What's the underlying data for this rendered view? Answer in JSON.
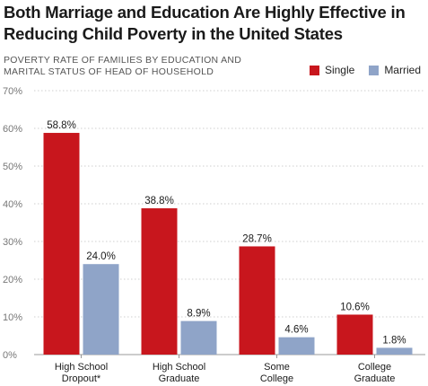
{
  "title_lines": [
    "Both Marriage and Education Are Highly Effective in",
    "Reducing Child Poverty in the United States"
  ],
  "subtitle_lines": [
    "POVERTY RATE OF FAMILIES BY EDUCATION AND",
    "MARITAL STATUS OF HEAD OF HOUSEHOLD"
  ],
  "legend": [
    {
      "label": "Single",
      "color": "#c8161d"
    },
    {
      "label": "Married",
      "color": "#8fa4c8"
    }
  ],
  "chart_data": {
    "type": "bar",
    "categories": [
      [
        "High School",
        "Dropout*"
      ],
      [
        "High School",
        "Graduate"
      ],
      [
        "Some",
        "College"
      ],
      [
        "College",
        "Graduate"
      ]
    ],
    "series": [
      {
        "name": "Single",
        "color": "#c8161d",
        "values": [
          58.8,
          38.8,
          28.7,
          10.6
        ],
        "labels": [
          "58.8%",
          "38.8%",
          "28.7%",
          "10.6%"
        ]
      },
      {
        "name": "Married",
        "color": "#8fa4c8",
        "values": [
          24.0,
          8.9,
          4.6,
          1.8
        ],
        "labels": [
          "24.0%",
          "8.9%",
          "4.6%",
          "1.8%"
        ]
      }
    ],
    "ylim": [
      0,
      70
    ],
    "yticks": [
      0,
      10,
      20,
      30,
      40,
      50,
      60,
      70
    ],
    "ytick_labels": [
      "0%",
      "10%",
      "20%",
      "30%",
      "40%",
      "50%",
      "60%",
      "70%"
    ],
    "grid": true
  }
}
